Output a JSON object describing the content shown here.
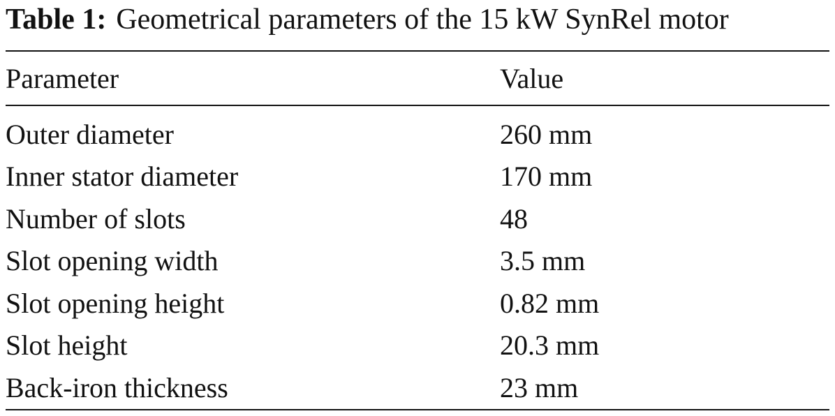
{
  "caption": {
    "label": "Table 1:",
    "text": "Geometrical parameters of the 15 kW SynRel motor"
  },
  "table": {
    "header": [
      "Parameter",
      "Value"
    ],
    "rows": [
      [
        "Outer diameter",
        "260 mm"
      ],
      [
        "Inner stator diameter",
        "170 mm"
      ],
      [
        "Number of slots",
        "48"
      ],
      [
        "Slot opening width",
        "3.5 mm"
      ],
      [
        "Slot opening height",
        "0.82 mm"
      ],
      [
        "Slot height",
        "20.3 mm"
      ],
      [
        "Back-iron thickness",
        "23 mm"
      ]
    ]
  }
}
